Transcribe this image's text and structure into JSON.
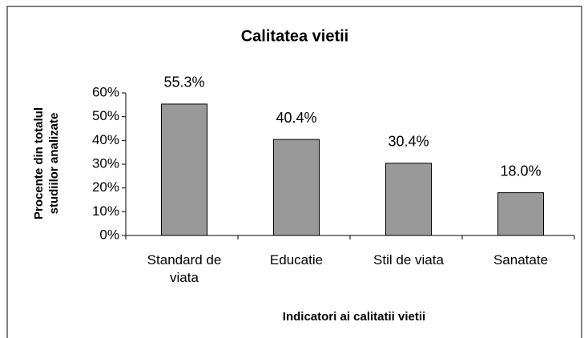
{
  "chart_data": {
    "type": "bar",
    "title": "Calitatea vietii",
    "x_label": "Indicatori ai calitatii vietii",
    "y_label": "Procente din totalul studiilor analizate",
    "categories": [
      "Standard de viata",
      "Educatie",
      "Stil de viata",
      "Sanatate"
    ],
    "values": [
      55.3,
      40.4,
      30.4,
      18.0
    ],
    "value_labels": [
      "55.3%",
      "40.4%",
      "30.4%",
      "18.0%"
    ],
    "color": "#999999",
    "ylim": [
      0,
      60
    ],
    "yticks": [
      {
        "value": 0,
        "label": "0%"
      },
      {
        "value": 10,
        "label": "10%"
      },
      {
        "value": 20,
        "label": "20%"
      },
      {
        "value": 30,
        "label": "30%"
      },
      {
        "value": 40,
        "label": "40%"
      },
      {
        "value": 50,
        "label": "50%"
      },
      {
        "value": 60,
        "label": "60%"
      }
    ]
  }
}
